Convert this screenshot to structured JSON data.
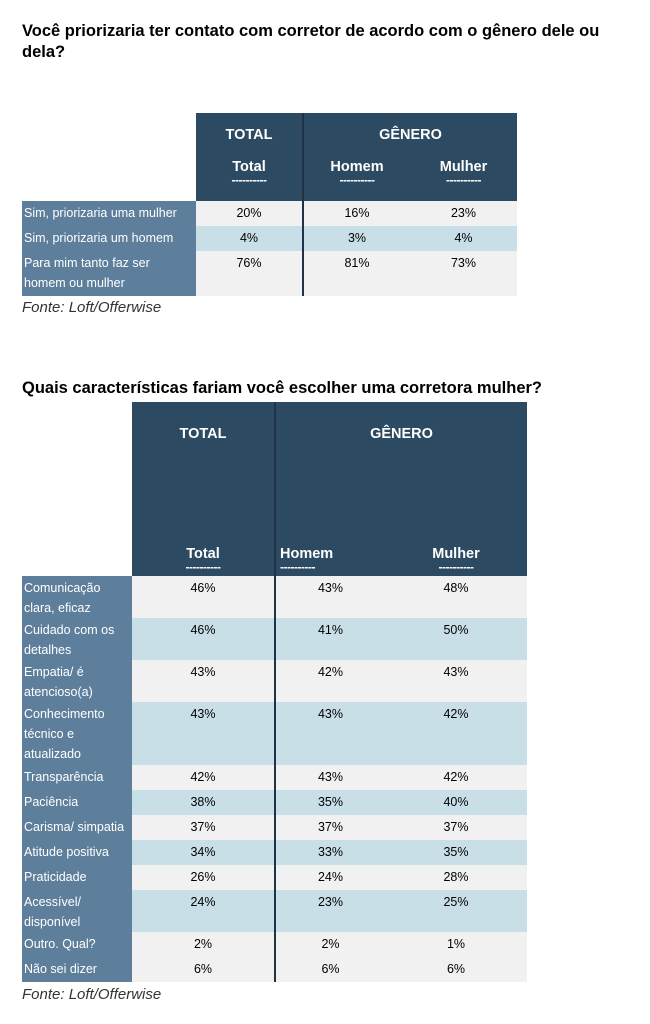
{
  "table1": {
    "title": "Você priorizaria ter contato com corretor de acordo com o gênero dele ou dela?",
    "group_total": "TOTAL",
    "group_genero": "GÊNERO",
    "col_total": "Total",
    "col_homem": "Homem",
    "col_mulher": "Mulher",
    "dashes": "----------",
    "rows": [
      {
        "label": "Sim, priorizaria uma mulher",
        "total": "20%",
        "homem": "16%",
        "mulher": "23%"
      },
      {
        "label": "Sim, priorizaria um homem",
        "total": "4%",
        "homem": "3%",
        "mulher": "4%"
      },
      {
        "label": "Para mim tanto faz ser homem ou mulher",
        "total": "76%",
        "homem": "81%",
        "mulher": "73%"
      }
    ],
    "source": "Fonte: Loft/Offerwise"
  },
  "table2": {
    "title": "Quais características fariam você escolher uma corretora mulher?",
    "group_total": "TOTAL",
    "group_genero": "GÊNERO",
    "col_total": "Total",
    "col_homem": "Homem",
    "col_mulher": "Mulher",
    "dashes": "----------",
    "rows": [
      {
        "label": "Comunicação clara, eficaz",
        "total": "46%",
        "homem": "43%",
        "mulher": "48%"
      },
      {
        "label": "Cuidado com os detalhes",
        "total": "46%",
        "homem": "41%",
        "mulher": "50%"
      },
      {
        "label": "Empatia/ é atencioso(a)",
        "total": "43%",
        "homem": "42%",
        "mulher": "43%"
      },
      {
        "label": "Conhecimento técnico e atualizado",
        "total": "43%",
        "homem": "43%",
        "mulher": "42%"
      },
      {
        "label": "Transparência",
        "total": "42%",
        "homem": "43%",
        "mulher": "42%"
      },
      {
        "label": "Paciência",
        "total": "38%",
        "homem": "35%",
        "mulher": "40%"
      },
      {
        "label": "Carisma/ simpatia",
        "total": "37%",
        "homem": "37%",
        "mulher": "37%"
      },
      {
        "label": "Atitude positiva",
        "total": "34%",
        "homem": "33%",
        "mulher": "35%"
      },
      {
        "label": "Praticidade",
        "total": "26%",
        "homem": "24%",
        "mulher": "28%"
      },
      {
        "label": "Acessível/ disponível",
        "total": "24%",
        "homem": "23%",
        "mulher": "25%"
      },
      {
        "label": "Outro. Qual?",
        "total": "2%",
        "homem": "2%",
        "mulher": "1%"
      },
      {
        "label": "Não sei dizer",
        "total": "6%",
        "homem": "6%",
        "mulher": "6%"
      }
    ],
    "source": "Fonte: Loft/Offerwise"
  }
}
